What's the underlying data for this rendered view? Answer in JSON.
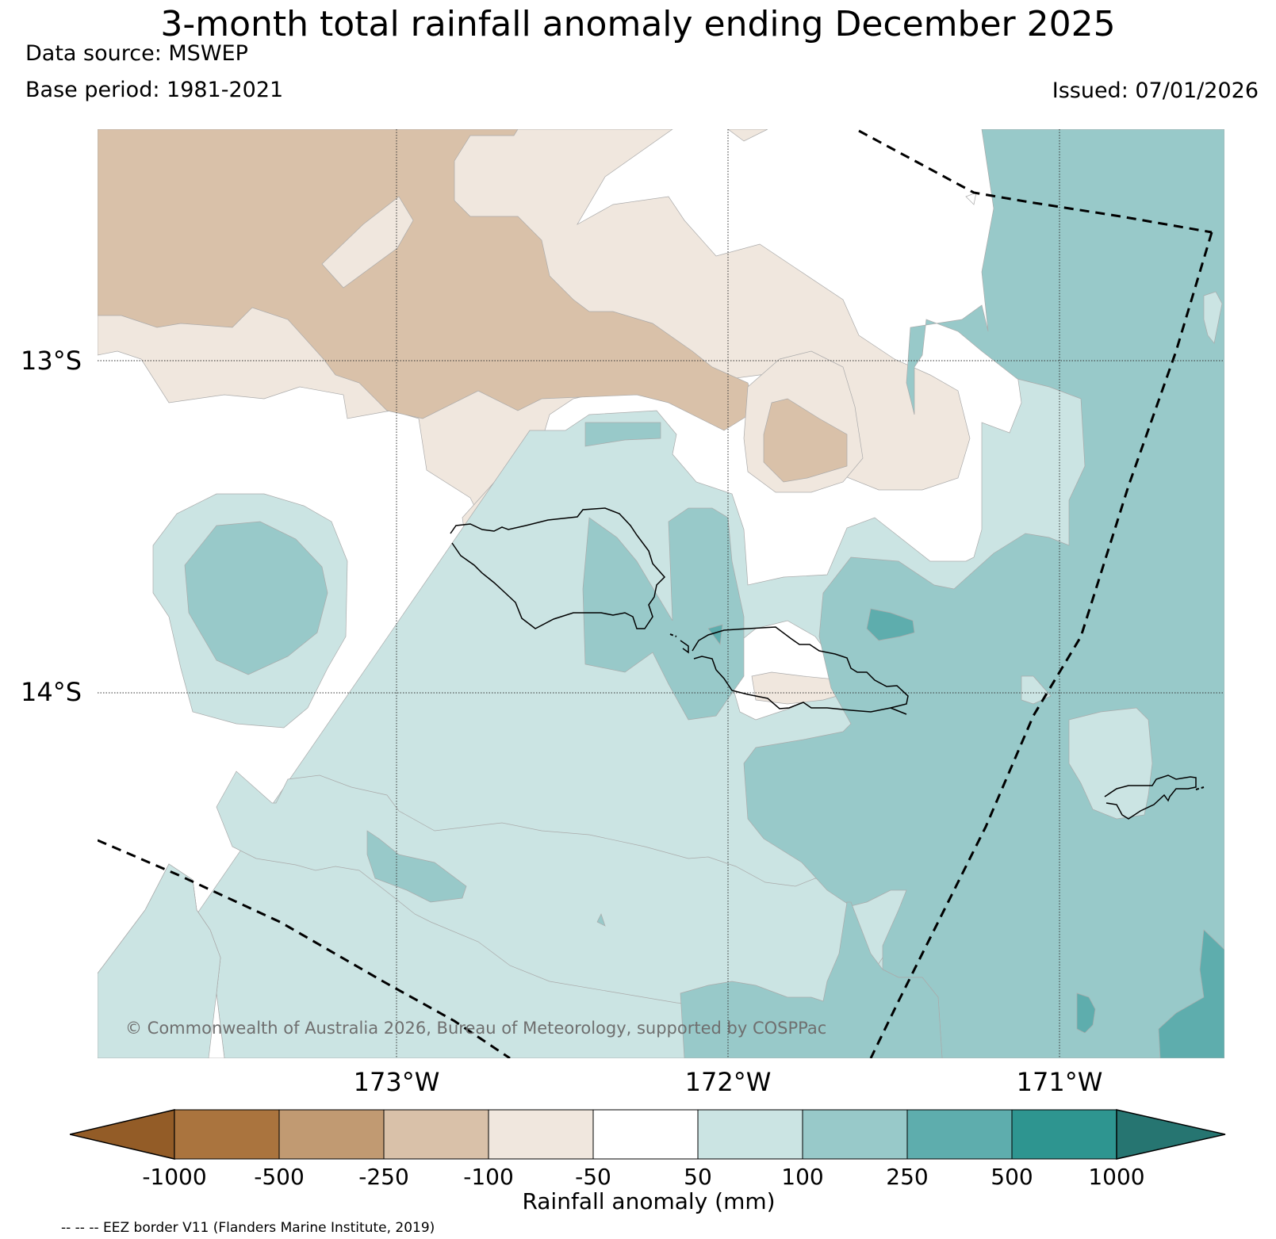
{
  "title": "3-month total rainfall anomaly ending December 2025",
  "data_source": "Data source: MSWEP",
  "base_period": "Base period: 1981-2021",
  "issued": "Issued: 07/01/2026",
  "latitude_labels": [
    "13°S",
    "14°S"
  ],
  "longitude_labels": [
    "173°W",
    "172°W",
    "171°W"
  ],
  "copyright": "© Commonwealth of Australia 2026, Bureau of Meteorology, supported by COSPPac",
  "colorbar": {
    "ticks": [
      "-1000",
      "-500",
      "-250",
      "-100",
      "-50",
      "50",
      "100",
      "250",
      "500",
      "1000"
    ],
    "label": "Rainfall anomaly (mm)",
    "colors": {
      "below_min": "#935c27",
      "band_-1000_-500": "#aa743e",
      "band_-500_-250": "#c19a72",
      "band_-250_-100": "#d9c1a9",
      "band_-100_-50": "#f0e7de",
      "band_-50_50": "#ffffff",
      "band_50_100": "#cbe4e3",
      "band_100_250": "#98c9c9",
      "band_250_500": "#5eadad",
      "band_500_1000": "#2e9590",
      "above_max": "#267571"
    }
  },
  "legend_note": "-- -- -- EEZ border V11 (Flanders Marine Institute, 2019)"
}
